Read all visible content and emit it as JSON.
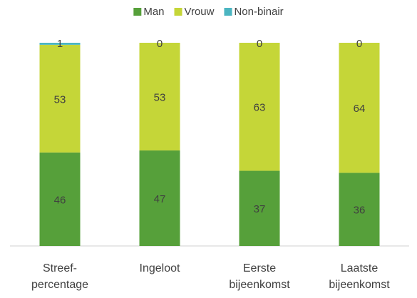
{
  "chart_data": {
    "type": "stacked_bar",
    "categories": [
      "Streef-\npercentage",
      "Ingeloot",
      "Eerste\nbijeenkomst",
      "Laatste\nbijeenkomst"
    ],
    "series": [
      {
        "name": "Man",
        "color": "#56a03a",
        "values": [
          46,
          47,
          37,
          36
        ]
      },
      {
        "name": "Vrouw",
        "color": "#c5d638",
        "values": [
          53,
          53,
          63,
          64
        ]
      },
      {
        "name": "Non-binair",
        "color": "#4bb5c1",
        "values": [
          1,
          0,
          0,
          0
        ]
      }
    ],
    "ylim": [
      0,
      100
    ],
    "legend": "top"
  }
}
